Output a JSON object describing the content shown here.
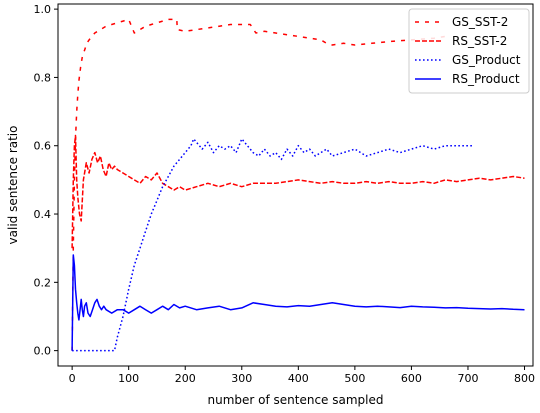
{
  "chart_data": {
    "type": "line",
    "xlabel": "number of sentence sampled",
    "ylabel": "valid sentence ratio",
    "xlim": [
      -25,
      815
    ],
    "ylim": [
      -0.045,
      1.015
    ],
    "xticks": [
      0,
      100,
      200,
      300,
      400,
      500,
      600,
      700,
      800
    ],
    "yticks": [
      0.0,
      0.2,
      0.4,
      0.6,
      0.8,
      1.0
    ],
    "xtick_labels": [
      "0",
      "100",
      "200",
      "300",
      "400",
      "500",
      "600",
      "700",
      "800"
    ],
    "ytick_labels": [
      "0.0",
      "0.2",
      "0.4",
      "0.6",
      "0.8",
      "1.0"
    ],
    "grid": false,
    "legend_position": "top-right",
    "series": [
      {
        "name": "GS_SST-2",
        "color": "#ff0000",
        "style": "loosedash",
        "x": [
          0,
          2,
          4,
          6,
          8,
          10,
          12,
          15,
          18,
          22,
          26,
          30,
          35,
          40,
          45,
          50,
          60,
          70,
          80,
          90,
          100,
          110,
          120,
          130,
          140,
          150,
          160,
          170,
          185,
          186,
          200,
          220,
          240,
          260,
          280,
          300,
          315,
          325,
          340,
          360,
          380,
          400,
          420,
          440,
          450,
          460,
          480,
          500,
          530,
          560,
          600,
          640,
          660
        ],
        "y": [
          0.0,
          0.3,
          0.5,
          0.62,
          0.7,
          0.75,
          0.79,
          0.83,
          0.86,
          0.88,
          0.9,
          0.91,
          0.92,
          0.93,
          0.935,
          0.94,
          0.95,
          0.955,
          0.96,
          0.965,
          0.97,
          0.93,
          0.94,
          0.95,
          0.955,
          0.96,
          0.965,
          0.97,
          0.97,
          0.94,
          0.935,
          0.94,
          0.945,
          0.95,
          0.955,
          0.955,
          0.955,
          0.93,
          0.935,
          0.93,
          0.925,
          0.92,
          0.915,
          0.91,
          0.9,
          0.895,
          0.9,
          0.895,
          0.9,
          0.905,
          0.91,
          0.915,
          0.92
        ]
      },
      {
        "name": "RS_SST-2",
        "color": "#ff0000",
        "style": "dashed",
        "x": [
          0,
          2,
          4,
          6,
          8,
          10,
          13,
          16,
          20,
          25,
          30,
          35,
          40,
          45,
          50,
          55,
          60,
          65,
          70,
          75,
          80,
          90,
          100,
          110,
          120,
          130,
          140,
          150,
          160,
          170,
          180,
          190,
          200,
          220,
          240,
          260,
          280,
          300,
          320,
          340,
          360,
          380,
          400,
          420,
          440,
          460,
          480,
          500,
          520,
          540,
          560,
          580,
          600,
          620,
          640,
          660,
          680,
          700,
          720,
          740,
          760,
          780,
          800
        ],
        "y": [
          0.3,
          0.5,
          0.6,
          0.63,
          0.5,
          0.45,
          0.4,
          0.38,
          0.5,
          0.55,
          0.52,
          0.56,
          0.58,
          0.55,
          0.57,
          0.53,
          0.51,
          0.55,
          0.53,
          0.54,
          0.53,
          0.52,
          0.51,
          0.5,
          0.49,
          0.51,
          0.5,
          0.52,
          0.49,
          0.48,
          0.47,
          0.48,
          0.47,
          0.48,
          0.49,
          0.48,
          0.49,
          0.48,
          0.49,
          0.49,
          0.49,
          0.495,
          0.5,
          0.495,
          0.49,
          0.495,
          0.49,
          0.49,
          0.495,
          0.49,
          0.495,
          0.49,
          0.49,
          0.495,
          0.49,
          0.5,
          0.495,
          0.5,
          0.505,
          0.5,
          0.505,
          0.51,
          0.505
        ]
      },
      {
        "name": "GS_Product",
        "color": "#0000ff",
        "style": "dotted",
        "x": [
          0,
          40,
          75,
          80,
          90,
          100,
          110,
          120,
          130,
          140,
          150,
          160,
          170,
          180,
          190,
          200,
          210,
          215,
          220,
          225,
          230,
          240,
          250,
          260,
          270,
          280,
          290,
          300,
          310,
          320,
          330,
          340,
          350,
          360,
          370,
          380,
          390,
          400,
          410,
          420,
          430,
          440,
          450,
          460,
          480,
          500,
          520,
          540,
          560,
          580,
          600,
          620,
          640,
          660,
          680,
          700,
          710
        ],
        "y": [
          0.0,
          0.0,
          0.0,
          0.04,
          0.1,
          0.18,
          0.25,
          0.3,
          0.35,
          0.4,
          0.44,
          0.48,
          0.51,
          0.54,
          0.56,
          0.58,
          0.6,
          0.62,
          0.61,
          0.6,
          0.59,
          0.61,
          0.58,
          0.6,
          0.59,
          0.6,
          0.58,
          0.62,
          0.6,
          0.58,
          0.57,
          0.59,
          0.57,
          0.58,
          0.56,
          0.59,
          0.57,
          0.6,
          0.58,
          0.59,
          0.57,
          0.58,
          0.59,
          0.57,
          0.58,
          0.59,
          0.57,
          0.58,
          0.59,
          0.58,
          0.59,
          0.6,
          0.59,
          0.6,
          0.6,
          0.6,
          0.6
        ]
      },
      {
        "name": "RS_Product",
        "color": "#0000ff",
        "style": "solid",
        "x": [
          0,
          2,
          4,
          6,
          8,
          10,
          12,
          14,
          16,
          18,
          20,
          22,
          25,
          28,
          32,
          36,
          40,
          44,
          48,
          52,
          56,
          60,
          70,
          80,
          90,
          100,
          110,
          120,
          130,
          140,
          150,
          160,
          170,
          180,
          190,
          200,
          220,
          240,
          260,
          280,
          300,
          320,
          340,
          360,
          380,
          400,
          420,
          440,
          460,
          480,
          500,
          520,
          540,
          560,
          580,
          600,
          620,
          640,
          660,
          680,
          700,
          720,
          740,
          760,
          780,
          800
        ],
        "y": [
          0.0,
          0.28,
          0.25,
          0.18,
          0.14,
          0.11,
          0.09,
          0.12,
          0.15,
          0.12,
          0.1,
          0.13,
          0.14,
          0.11,
          0.1,
          0.12,
          0.14,
          0.15,
          0.13,
          0.12,
          0.13,
          0.12,
          0.11,
          0.12,
          0.12,
          0.11,
          0.12,
          0.13,
          0.12,
          0.11,
          0.12,
          0.13,
          0.12,
          0.135,
          0.125,
          0.13,
          0.12,
          0.125,
          0.13,
          0.12,
          0.125,
          0.14,
          0.135,
          0.13,
          0.128,
          0.132,
          0.13,
          0.135,
          0.14,
          0.135,
          0.13,
          0.128,
          0.13,
          0.128,
          0.126,
          0.13,
          0.128,
          0.127,
          0.125,
          0.126,
          0.124,
          0.123,
          0.122,
          0.123,
          0.121,
          0.12
        ]
      }
    ]
  }
}
